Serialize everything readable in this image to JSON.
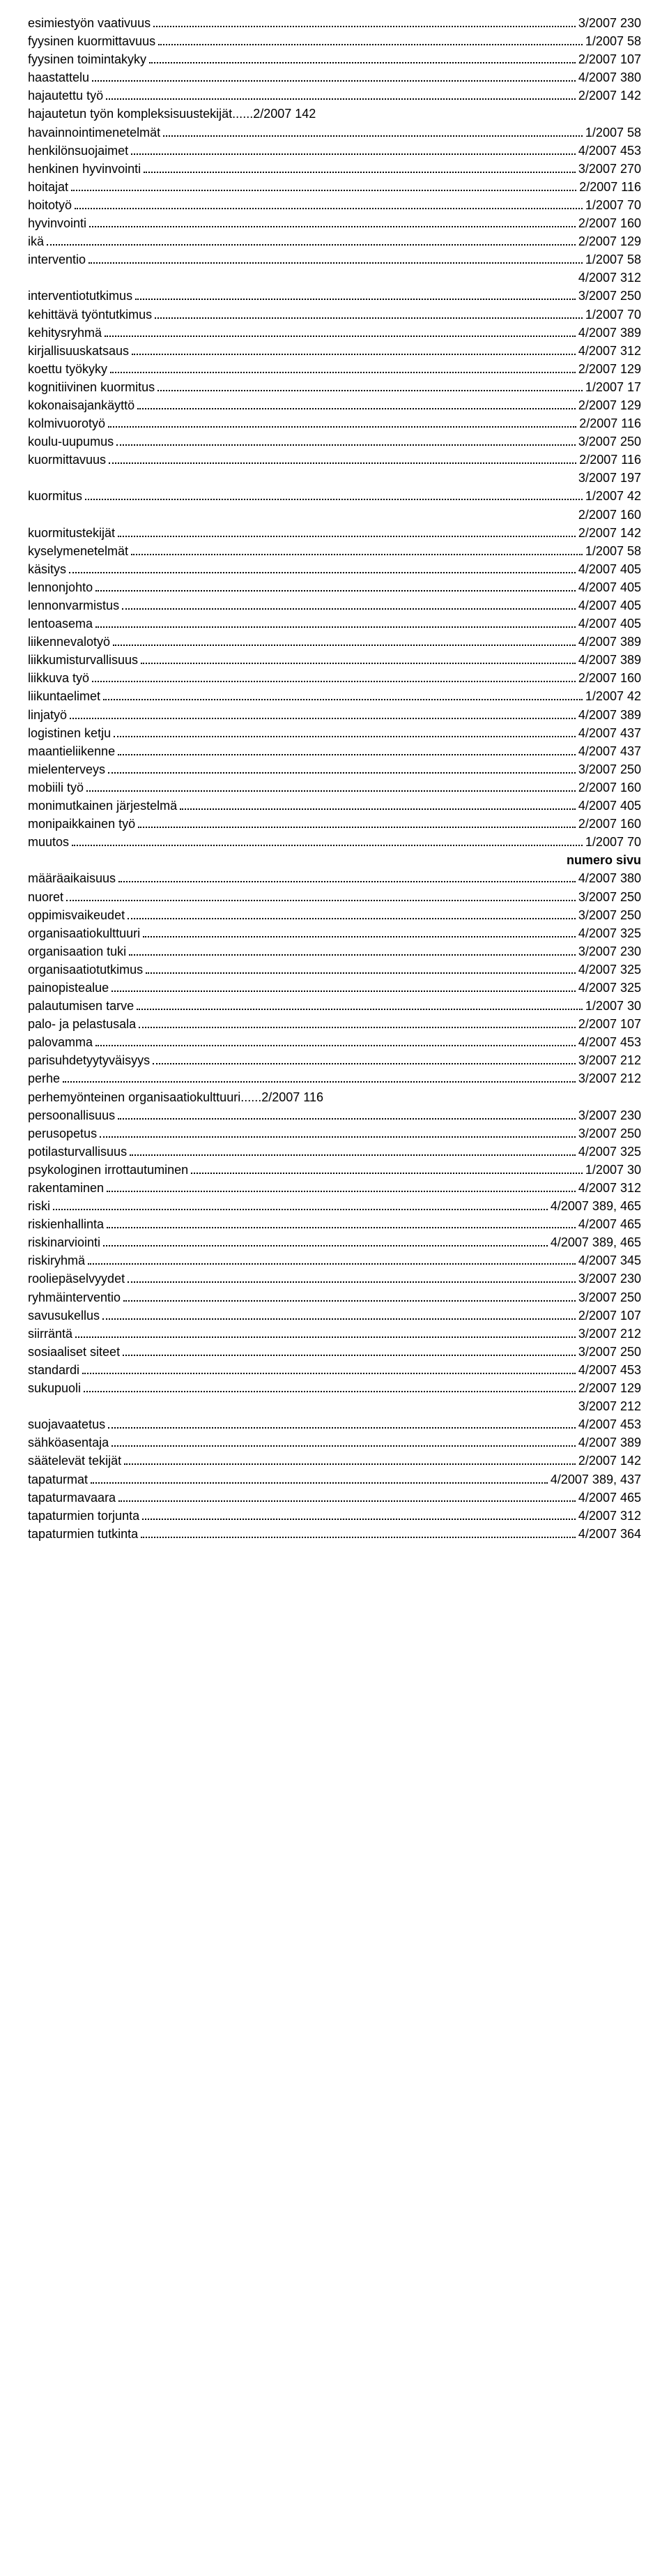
{
  "entries": [
    {
      "term": "esimiestyön vaativuus",
      "ref": "3/2007 230"
    },
    {
      "term": "fyysinen kuormittavuus",
      "ref": "1/2007 58"
    },
    {
      "term": "fyysinen toimintakyky",
      "ref": "2/2007 107"
    },
    {
      "term": "haastattelu",
      "ref": "4/2007 380"
    },
    {
      "term": "hajautettu työ",
      "ref": "2/2007 142"
    },
    {
      "term": "hajautetun työn kompleksisuustekijät",
      "ref": "2/2007 142",
      "nodots": true
    },
    {
      "term": "havainnointimenetelmät",
      "ref": "1/2007 58"
    },
    {
      "term": "henkilönsuojaimet",
      "ref": "4/2007 453"
    },
    {
      "term": "henkinen hyvinvointi",
      "ref": "3/2007 270"
    },
    {
      "term": "hoitajat",
      "ref": "2/2007 116"
    },
    {
      "term": "hoitotyö",
      "ref": "1/2007 70"
    },
    {
      "term": "hyvinvointi",
      "ref": "2/2007 160"
    },
    {
      "term": "ikä",
      "ref": "2/2007 129"
    },
    {
      "term": "interventio",
      "ref": "1/2007 58"
    },
    {
      "extra": "4/2007 312"
    },
    {
      "term": "interventiotutkimus",
      "ref": "3/2007 250"
    },
    {
      "term": "kehittävä työntutkimus",
      "ref": "1/2007 70"
    },
    {
      "term": "kehitysryhmä",
      "ref": "4/2007 389"
    },
    {
      "term": "kirjallisuuskatsaus",
      "ref": "4/2007 312"
    },
    {
      "term": "koettu työkyky",
      "ref": "2/2007 129"
    },
    {
      "term": "kognitiivinen kuormitus",
      "ref": "1/2007 17"
    },
    {
      "term": "kokonaisajankäyttö",
      "ref": "2/2007 129"
    },
    {
      "term": "kolmivuorotyö",
      "ref": "2/2007 116"
    },
    {
      "term": "koulu-uupumus",
      "ref": "3/2007 250"
    },
    {
      "term": "kuormittavuus",
      "ref": "2/2007 116"
    },
    {
      "extra": "3/2007 197"
    },
    {
      "term": "kuormitus",
      "ref": "1/2007 42"
    },
    {
      "extra": "2/2007 160"
    },
    {
      "term": "kuormitustekijät",
      "ref": "2/2007 142"
    },
    {
      "term": "kyselymenetelmät",
      "ref": "1/2007 58"
    },
    {
      "term": "käsitys",
      "ref": "4/2007 405"
    },
    {
      "term": "lennonjohto",
      "ref": "4/2007 405"
    },
    {
      "term": "lennonvarmistus",
      "ref": "4/2007 405"
    },
    {
      "term": "lentoasema",
      "ref": "4/2007 405"
    },
    {
      "term": "liikennevalotyö",
      "ref": "4/2007 389"
    },
    {
      "term": "liikkumisturvallisuus",
      "ref": "4/2007 389"
    },
    {
      "term": "liikkuva työ",
      "ref": "2/2007 160"
    },
    {
      "term": "liikuntaelimet",
      "ref": "1/2007 42"
    },
    {
      "term": "linjatyö",
      "ref": "4/2007 389"
    },
    {
      "term": "logistinen ketju",
      "ref": "4/2007 437"
    },
    {
      "term": "maantieliikenne",
      "ref": "4/2007 437"
    },
    {
      "term": "mielenterveys",
      "ref": "3/2007 250"
    },
    {
      "term": "mobiili työ",
      "ref": "2/2007 160"
    },
    {
      "term": "monimutkainen järjestelmä",
      "ref": "4/2007 405"
    },
    {
      "term": "monipaikkainen työ",
      "ref": "2/2007 160"
    },
    {
      "term": "muutos",
      "ref": "1/2007 70"
    },
    {
      "header": "numero sivu"
    },
    {
      "term": "määräaikaisuus",
      "ref": "4/2007 380"
    },
    {
      "term": "nuoret",
      "ref": "3/2007 250"
    },
    {
      "term": "oppimisvaikeudet",
      "ref": "3/2007 250"
    },
    {
      "term": "organisaatiokulttuuri",
      "ref": "4/2007 325"
    },
    {
      "term": "organisaation tuki",
      "ref": "3/2007 230"
    },
    {
      "term": "organisaatiotutkimus",
      "ref": "4/2007 325"
    },
    {
      "term": "painopistealue",
      "ref": "4/2007 325"
    },
    {
      "term": "palautumisen tarve",
      "ref": "1/2007 30"
    },
    {
      "term": "palo- ja pelastusala",
      "ref": "2/2007 107"
    },
    {
      "term": "palovamma",
      "ref": "4/2007 453"
    },
    {
      "term": "parisuhdetyytyväisyys",
      "ref": "3/2007 212"
    },
    {
      "term": "perhe",
      "ref": "3/2007 212"
    },
    {
      "term": "perhemyönteinen organisaatiokulttuuri",
      "ref": "2/2007 116",
      "nodots": true
    },
    {
      "term": "persoonallisuus",
      "ref": "3/2007 230"
    },
    {
      "term": "perusopetus",
      "ref": "3/2007 250"
    },
    {
      "term": "potilasturvallisuus",
      "ref": "4/2007 325"
    },
    {
      "term": "psykologinen irrottautuminen",
      "ref": "1/2007 30"
    },
    {
      "term": "rakentaminen",
      "ref": "4/2007 312"
    },
    {
      "term": "riski",
      "ref": "4/2007 389, 465"
    },
    {
      "term": "riskienhallinta",
      "ref": "4/2007 465"
    },
    {
      "term": "riskinarviointi",
      "ref": "4/2007 389, 465"
    },
    {
      "term": "riskiryhmä",
      "ref": "4/2007 345"
    },
    {
      "term": "rooliepäselvyydet",
      "ref": "3/2007 230"
    },
    {
      "term": "ryhmäinterventio",
      "ref": "3/2007 250"
    },
    {
      "term": "savusukellus",
      "ref": "2/2007 107"
    },
    {
      "term": "siirräntä",
      "ref": "3/2007 212"
    },
    {
      "term": "sosiaaliset siteet",
      "ref": "3/2007 250"
    },
    {
      "term": "standardi",
      "ref": "4/2007 453"
    },
    {
      "term": "sukupuoli",
      "ref": "2/2007 129"
    },
    {
      "extra": "3/2007 212"
    },
    {
      "term": "suojavaatetus",
      "ref": "4/2007 453"
    },
    {
      "term": "sähköasentaja",
      "ref": "4/2007 389"
    },
    {
      "term": "säätelevät tekijät",
      "ref": "2/2007 142"
    },
    {
      "term": "tapaturmat",
      "ref": "4/2007 389, 437"
    },
    {
      "term": "tapaturmavaara",
      "ref": "4/2007 465"
    },
    {
      "term": "tapaturmien torjunta",
      "ref": "4/2007 312"
    },
    {
      "term": "tapaturmien tutkinta",
      "ref": "4/2007 364"
    }
  ]
}
